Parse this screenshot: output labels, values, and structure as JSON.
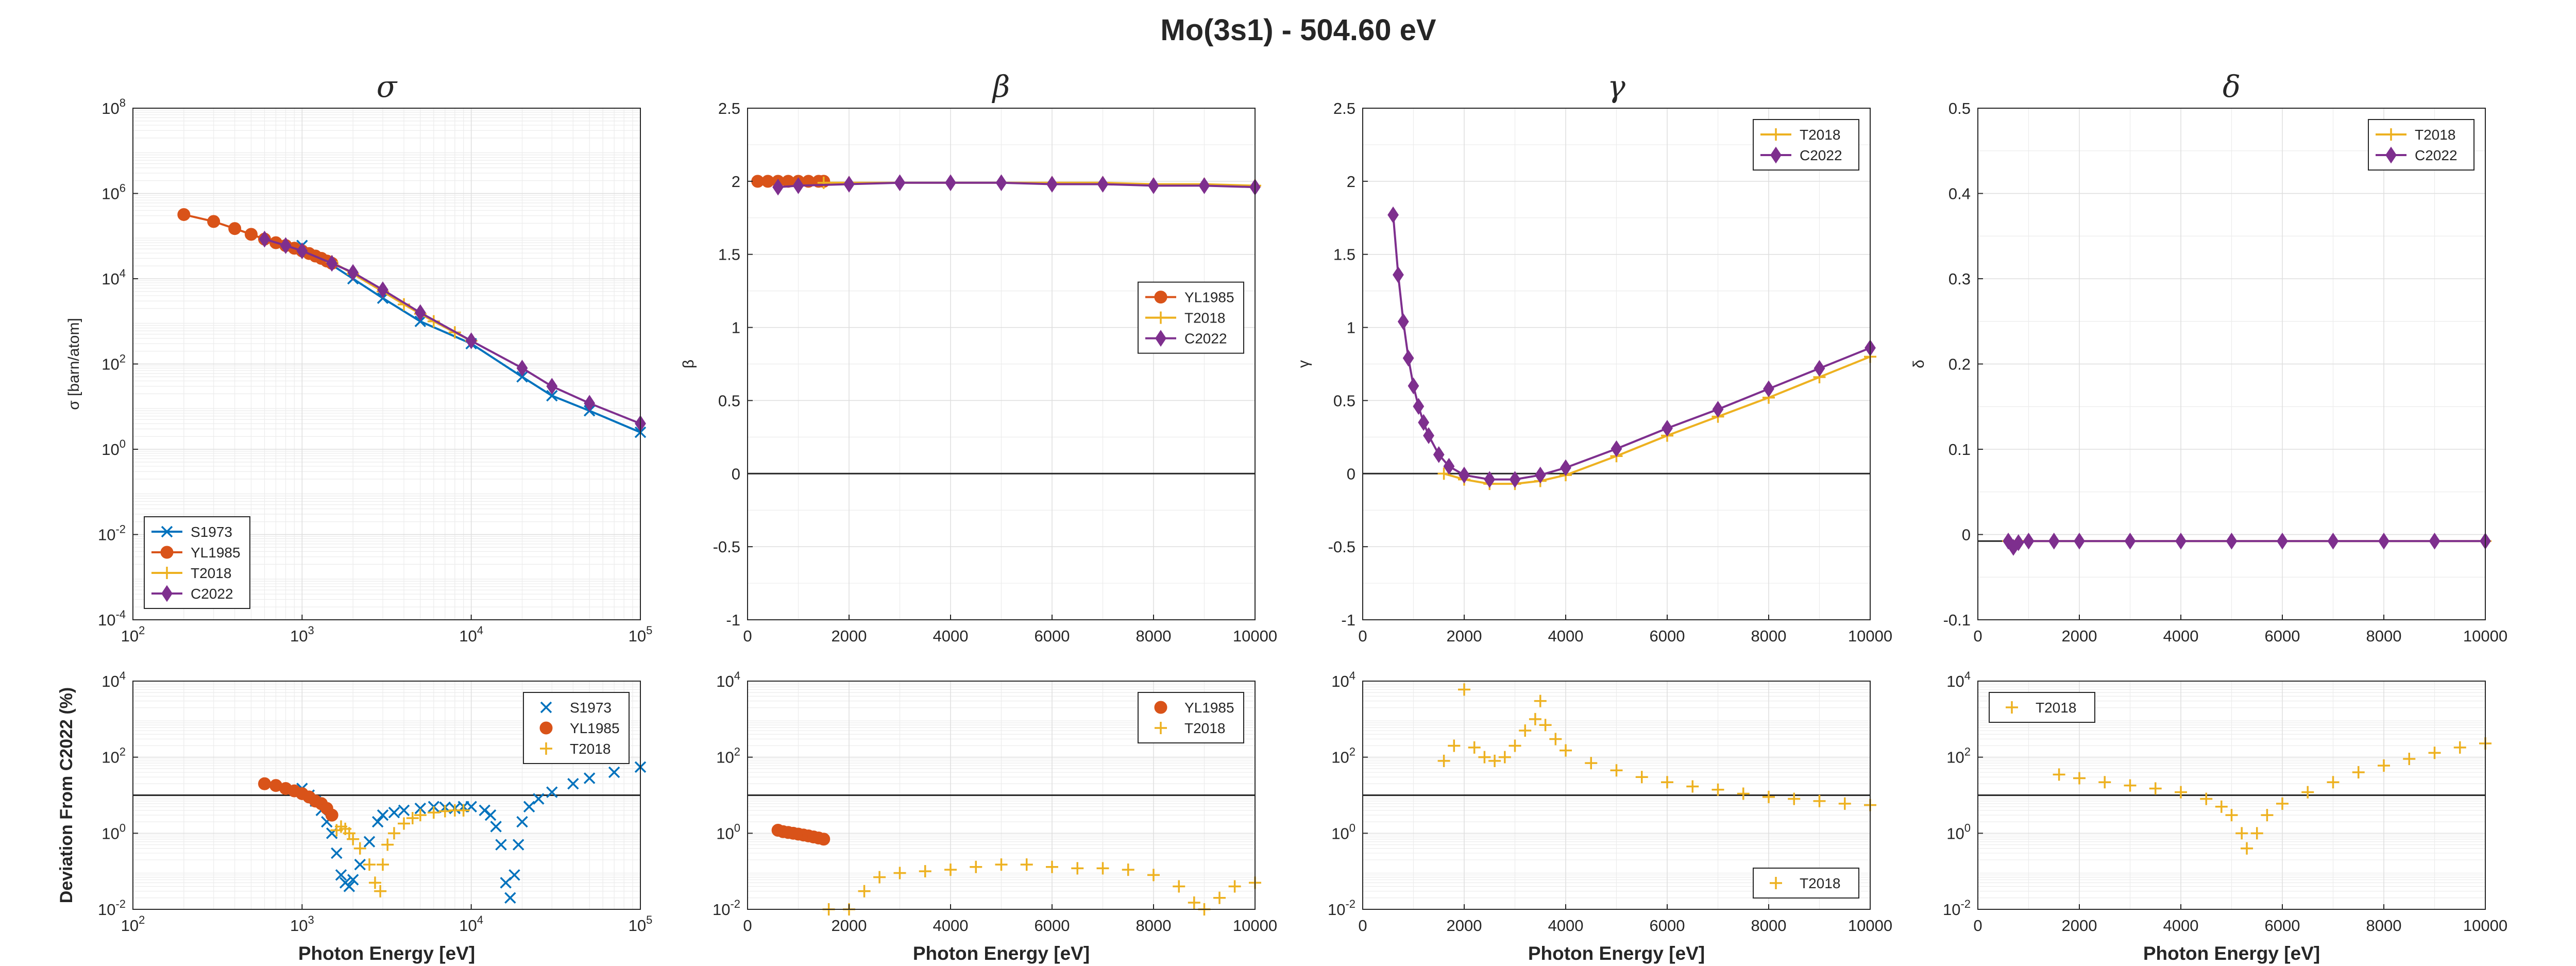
{
  "figure": {
    "title": "Mo(3s1) - 504.60 eV"
  },
  "colors": {
    "S1973": "#0072BD",
    "YL1985": "#D95319",
    "T2018": "#EDB120",
    "C2022": "#7E2F8E",
    "reference_line": "#262626"
  },
  "chart_data": [
    {
      "id": "sigma",
      "type": "line",
      "title": "σ",
      "xlabel": "",
      "ylabel": "σ [barn/atom]",
      "xscale": "log",
      "yscale": "log",
      "xlim": [
        100,
        100000
      ],
      "ylim": [
        0.0001,
        100000000
      ],
      "xticks": [
        "10²",
        "10³",
        "10⁴",
        "10⁵"
      ],
      "yticks": [
        "10⁻⁴",
        "10⁻²",
        "10⁰",
        "10²",
        "10⁴",
        "10⁶",
        "10⁸"
      ],
      "grid": true,
      "legend_position": "bottom-left",
      "series": [
        {
          "name": "S1973",
          "marker": "x",
          "x": [
            1000,
            2000,
            3000,
            5000,
            10000,
            20000,
            30000,
            50000,
            100000
          ],
          "y": [
            60000,
            10000,
            3500,
            1000,
            300,
            50,
            18,
            8,
            2.5
          ]
        },
        {
          "name": "YL1985",
          "marker": "circle",
          "x": [
            200,
            300,
            400,
            500,
            600,
            700,
            800,
            900,
            1000,
            1100,
            1200,
            1300,
            1400,
            1500
          ],
          "y": [
            320000,
            220000,
            150000,
            110000,
            85000,
            70000,
            60000,
            52000,
            45000,
            39000,
            34000,
            30000,
            26000,
            23000
          ]
        },
        {
          "name": "T2018",
          "marker": "plus",
          "x": [
            1500,
            2000,
            3000,
            4000,
            5000,
            6000,
            8000,
            10000
          ],
          "y": [
            25000,
            13000,
            5000,
            2500,
            1500,
            1000,
            550,
            350
          ]
        },
        {
          "name": "C2022",
          "marker": "diamond",
          "x": [
            600,
            800,
            1000,
            1500,
            2000,
            3000,
            5000,
            10000,
            20000,
            30000,
            50000,
            100000
          ],
          "y": [
            85000,
            60000,
            45000,
            23000,
            14000,
            5500,
            1600,
            350,
            80,
            30,
            12,
            4
          ]
        }
      ]
    },
    {
      "id": "beta",
      "type": "line",
      "title": "β",
      "xlabel": "",
      "ylabel": "β",
      "xlim": [
        0,
        10000
      ],
      "ylim": [
        -1,
        2.5
      ],
      "xticks": [
        "0",
        "2000",
        "4000",
        "6000",
        "8000",
        "10000"
      ],
      "yticks": [
        "-1",
        "-0.5",
        "0",
        "0.5",
        "1",
        "1.5",
        "2",
        "2.5"
      ],
      "grid": true,
      "legend_position": "center-right",
      "series": [
        {
          "name": "YL1985",
          "marker": "circle",
          "x": [
            200,
            400,
            600,
            800,
            1000,
            1200,
            1400,
            1500
          ],
          "y": [
            2.0,
            2.0,
            2.0,
            2.0,
            2.0,
            2.0,
            2.0,
            2.0
          ]
        },
        {
          "name": "T2018",
          "marker": "plus",
          "x": [
            1500,
            2000,
            3000,
            4000,
            5000,
            6000,
            7000,
            8000,
            9000,
            10000
          ],
          "y": [
            1.99,
            1.99,
            1.99,
            1.99,
            1.99,
            1.99,
            1.99,
            1.98,
            1.98,
            1.97
          ]
        },
        {
          "name": "C2022",
          "marker": "diamond",
          "x": [
            600,
            1000,
            2000,
            3000,
            4000,
            5000,
            6000,
            7000,
            8000,
            9000,
            10000
          ],
          "y": [
            1.96,
            1.97,
            1.98,
            1.99,
            1.99,
            1.99,
            1.98,
            1.98,
            1.97,
            1.97,
            1.96
          ]
        }
      ]
    },
    {
      "id": "gamma",
      "type": "line",
      "title": "γ",
      "xlabel": "",
      "ylabel": "γ",
      "xlim": [
        0,
        10000
      ],
      "ylim": [
        -1,
        2.5
      ],
      "xticks": [
        "0",
        "2000",
        "4000",
        "6000",
        "8000",
        "10000"
      ],
      "yticks": [
        "-1",
        "-0.5",
        "0",
        "0.5",
        "1",
        "1.5",
        "2",
        "2.5"
      ],
      "grid": true,
      "legend_position": "top-right",
      "series": [
        {
          "name": "T2018",
          "marker": "plus",
          "x": [
            1600,
            2000,
            2500,
            3000,
            3500,
            4000,
            5000,
            6000,
            7000,
            8000,
            9000,
            10000
          ],
          "y": [
            0.0,
            -0.04,
            -0.07,
            -0.07,
            -0.05,
            -0.01,
            0.12,
            0.26,
            0.39,
            0.52,
            0.66,
            0.8
          ]
        },
        {
          "name": "C2022",
          "marker": "diamond",
          "x": [
            600,
            700,
            800,
            900,
            1000,
            1100,
            1200,
            1300,
            1500,
            1700,
            2000,
            2500,
            3000,
            3500,
            4000,
            5000,
            6000,
            7000,
            8000,
            9000,
            10000
          ],
          "y": [
            1.77,
            1.36,
            1.04,
            0.79,
            0.6,
            0.46,
            0.35,
            0.26,
            0.13,
            0.05,
            -0.01,
            -0.04,
            -0.04,
            -0.01,
            0.04,
            0.17,
            0.31,
            0.44,
            0.58,
            0.72,
            0.86
          ]
        }
      ]
    },
    {
      "id": "delta",
      "type": "line",
      "title": "δ",
      "xlabel": "",
      "ylabel": "δ",
      "xlim": [
        0,
        10000
      ],
      "ylim": [
        -0.1,
        0.55
      ],
      "xticks": [
        "0",
        "2000",
        "4000",
        "6000",
        "8000",
        "10000"
      ],
      "yticks": [
        "-0.1",
        "0",
        "0.1",
        "0.2",
        "0.3",
        "0.4",
        "0.5"
      ],
      "grid": true,
      "legend_position": "top-right",
      "series": [
        {
          "name": "T2018",
          "marker": "plus",
          "x": [
            600,
            1000,
            2000,
            3000,
            4000,
            5000,
            6000,
            7000,
            8000,
            9000,
            10000
          ],
          "y": [
            0,
            0,
            0,
            0,
            0,
            0,
            0,
            0,
            0,
            0,
            0
          ]
        },
        {
          "name": "C2022",
          "marker": "diamond",
          "x": [
            600,
            700,
            800,
            1000,
            1500,
            2000,
            3000,
            4000,
            5000,
            6000,
            7000,
            8000,
            9000,
            10000
          ],
          "y": [
            0,
            -0.008,
            -0.002,
            0,
            0,
            0,
            0,
            0,
            0,
            0,
            0,
            0,
            0,
            0
          ]
        }
      ]
    },
    {
      "id": "dev-sigma",
      "type": "scatter",
      "title": "",
      "xlabel": "Photon Energy [eV]",
      "ylabel": "Deviation From C2022 (%)",
      "xscale": "log",
      "yscale": "log",
      "xlim": [
        100,
        100000
      ],
      "ylim": [
        0.01,
        10000
      ],
      "reference_line": 10,
      "xticks": [
        "10²",
        "10³",
        "10⁴",
        "10⁵"
      ],
      "yticks": [
        "10⁻²",
        "10⁰",
        "10²",
        "10⁴"
      ],
      "grid": true,
      "legend_position": "top-right",
      "series": [
        {
          "name": "S1973",
          "marker": "x",
          "x": [
            1000,
            1100,
            1200,
            1300,
            1400,
            1500,
            1600,
            1700,
            1800,
            1900,
            2000,
            2200,
            2500,
            2800,
            3000,
            3500,
            4000,
            5000,
            6000,
            7000,
            8000,
            9000,
            10000,
            12000,
            13000,
            14000,
            15000,
            16000,
            17000,
            18000,
            19000,
            20000,
            22000,
            25000,
            30000,
            40000,
            50000,
            70000,
            100000
          ],
          "y": [
            15,
            10,
            7,
            4,
            2,
            1,
            0.3,
            0.08,
            0.05,
            0.04,
            0.06,
            0.15,
            0.6,
            2,
            3,
            3.5,
            4,
            4.5,
            5,
            4.8,
            4.5,
            5,
            5,
            4,
            3,
            1.5,
            0.5,
            0.05,
            0.02,
            0.08,
            0.5,
            2,
            5,
            8,
            12,
            20,
            28,
            40,
            55
          ]
        },
        {
          "name": "YL1985",
          "marker": "circle",
          "x": [
            600,
            700,
            800,
            900,
            1000,
            1100,
            1200,
            1300,
            1400,
            1500
          ],
          "y": [
            20,
            18,
            15,
            13,
            11,
            9,
            7,
            6,
            4.5,
            3
          ]
        },
        {
          "name": "T2018",
          "marker": "plus",
          "x": [
            1600,
            1700,
            1800,
            1900,
            2000,
            2200,
            2500,
            2700,
            2900,
            3000,
            3200,
            3500,
            4000,
            4500,
            5000,
            6000,
            7000,
            8000,
            9000
          ],
          "y": [
            1.2,
            1.5,
            1.3,
            1,
            0.7,
            0.4,
            0.15,
            0.05,
            0.03,
            0.15,
            0.5,
            1,
            1.8,
            2.5,
            3,
            3.5,
            3.8,
            4,
            4
          ]
        }
      ]
    },
    {
      "id": "dev-beta",
      "type": "scatter",
      "title": "",
      "xlabel": "Photon Energy [eV]",
      "ylabel": "",
      "xscale": "linear",
      "yscale": "log",
      "xlim": [
        0,
        10000
      ],
      "ylim": [
        0.01,
        10000
      ],
      "reference_line": 10,
      "xticks": [
        "0",
        "2000",
        "4000",
        "6000",
        "8000",
        "10000"
      ],
      "yticks": [
        "10⁻²",
        "10⁰",
        "10²",
        "10⁴"
      ],
      "grid": true,
      "legend_position": "top-right",
      "series": [
        {
          "name": "YL1985",
          "marker": "circle",
          "x": [
            600,
            700,
            800,
            900,
            1000,
            1100,
            1200,
            1300,
            1400,
            1500
          ],
          "y": [
            1.2,
            1.1,
            1.05,
            1.0,
            0.95,
            0.9,
            0.85,
            0.8,
            0.75,
            0.7
          ]
        },
        {
          "name": "T2018",
          "marker": "plus",
          "x": [
            1600,
            2000,
            2300,
            2600,
            3000,
            3500,
            4000,
            4500,
            5000,
            5500,
            6000,
            6500,
            7000,
            7500,
            8000,
            8500,
            8800,
            9000,
            9300,
            9600,
            10000
          ],
          "y": [
            0.01,
            0.01,
            0.03,
            0.07,
            0.09,
            0.1,
            0.11,
            0.13,
            0.15,
            0.15,
            0.13,
            0.12,
            0.12,
            0.11,
            0.08,
            0.04,
            0.015,
            0.01,
            0.02,
            0.04,
            0.05
          ]
        }
      ]
    },
    {
      "id": "dev-gamma",
      "type": "scatter",
      "title": "",
      "xlabel": "Photon Energy [eV]",
      "ylabel": "",
      "xscale": "linear",
      "yscale": "log",
      "xlim": [
        0,
        10000
      ],
      "ylim": [
        0.01,
        10000
      ],
      "reference_line": 10,
      "xticks": [
        "0",
        "2000",
        "4000",
        "6000",
        "8000",
        "10000"
      ],
      "yticks": [
        "10⁻²",
        "10⁰",
        "10²",
        "10⁴"
      ],
      "grid": true,
      "legend_position": "bottom-right",
      "series": [
        {
          "name": "T2018",
          "marker": "plus",
          "x": [
            1600,
            1800,
            2000,
            2200,
            2400,
            2600,
            2800,
            3000,
            3200,
            3400,
            3500,
            3600,
            3800,
            4000,
            4500,
            5000,
            5500,
            6000,
            6500,
            7000,
            7500,
            8000,
            8500,
            9000,
            9500,
            10000
          ],
          "y": [
            80,
            200,
            6000,
            180,
            100,
            80,
            100,
            200,
            500,
            1000,
            3000,
            700,
            300,
            150,
            70,
            45,
            30,
            22,
            17,
            14,
            11,
            9,
            8,
            7,
            6,
            5.5
          ]
        }
      ]
    },
    {
      "id": "dev-delta",
      "type": "scatter",
      "title": "",
      "xlabel": "Photon Energy [eV]",
      "ylabel": "",
      "xscale": "linear",
      "yscale": "log",
      "xlim": [
        0,
        10000
      ],
      "ylim": [
        0.01,
        10000
      ],
      "reference_line": 10,
      "xticks": [
        "0",
        "2000",
        "4000",
        "6000",
        "8000",
        "10000"
      ],
      "yticks": [
        "10⁻²",
        "10⁰",
        "10²",
        "10⁴"
      ],
      "grid": true,
      "legend_position": "top-left",
      "series": [
        {
          "name": "T2018",
          "marker": "plus",
          "x": [
            1600,
            2000,
            2500,
            3000,
            3500,
            4000,
            4500,
            4800,
            5000,
            5200,
            5300,
            5500,
            5700,
            6000,
            6500,
            7000,
            7500,
            8000,
            8500,
            9000,
            9500,
            10000
          ],
          "y": [
            35,
            28,
            22,
            18,
            15,
            12,
            8,
            5,
            3,
            1,
            0.4,
            1,
            3,
            6,
            12,
            22,
            40,
            60,
            90,
            130,
            180,
            230
          ]
        }
      ]
    }
  ]
}
